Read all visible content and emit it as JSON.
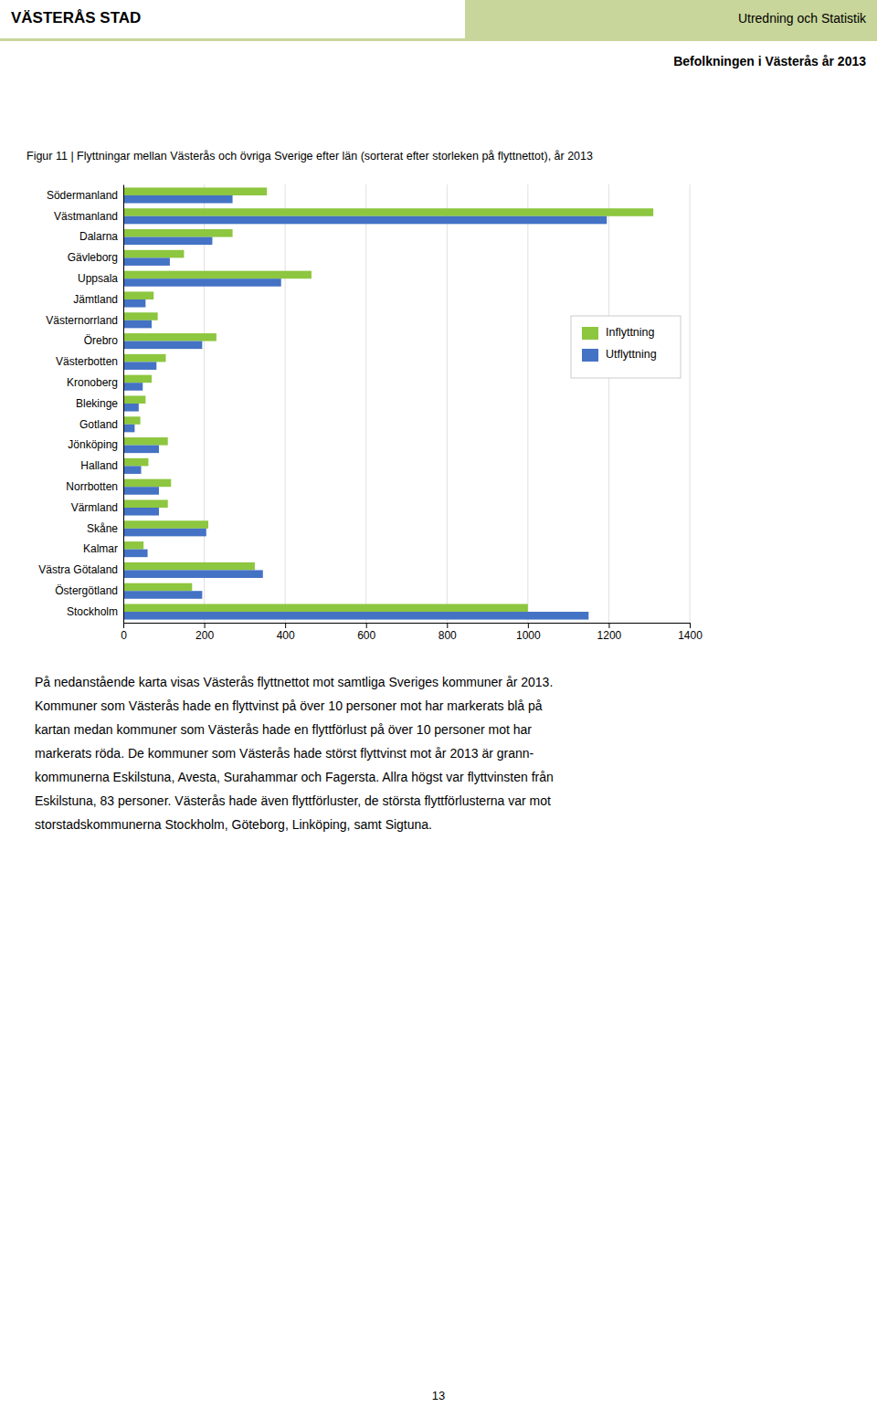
{
  "page": {
    "header_left": "VÄSTERÅS STAD",
    "header_right": "Utredning och Statistik",
    "header_color": "#C9D69B",
    "subtitle": "Befolkningen i Västerås år 2013",
    "body": [
      "På nedanstående karta visas Västerås flyttnettot mot samtliga Sveriges kommuner år 2013.",
      "Kommuner som Västerås hade en flyttvinst på över 10 personer mot har markerats blå på",
      "kartan medan kommuner som Västerås hade en flyttförlust på över 10 personer mot har",
      "markerats röda. De kommuner som Västerås hade störst flyttvinst mot år 2013 är grann-",
      "kommunerna Eskilstuna, Avesta, Surahammar och Fagersta. Allra högst var flyttvinsten från",
      "Eskilstuna, 83 personer. Västerås hade även flyttförluster, de största flyttförlusterna var mot",
      "storstadskommunerna Stockholm, Göteborg, Linköping, samt Sigtuna."
    ],
    "page_number": "13"
  },
  "chart_data": {
    "type": "bar",
    "orientation": "horizontal",
    "title": "Figur 11 | Flyttningar mellan Västerås och övriga Sverige efter län (sorterat efter storleken på flyttnettot), år 2013",
    "categories": [
      "Södermanland",
      "Västmanland",
      "Dalarna",
      "Gävleborg",
      "Uppsala",
      "Jämtland",
      "Västernorrland",
      "Örebro",
      "Västerbotten",
      "Kronoberg",
      "Blekinge",
      "Gotland",
      "Jönköping",
      "Halland",
      "Norrbotten",
      "Värmland",
      "Skåne",
      "Kalmar",
      "Västra Götaland",
      "Östergötland",
      "Stockholm"
    ],
    "series": [
      {
        "name": "Inflyttning",
        "color": "#8DC63F",
        "values": [
          355,
          1310,
          270,
          150,
          465,
          75,
          85,
          230,
          105,
          70,
          55,
          42,
          110,
          62,
          118,
          110,
          210,
          50,
          325,
          170,
          1000
        ]
      },
      {
        "name": "Utflyttning",
        "color": "#4472C4",
        "values": [
          270,
          1195,
          220,
          115,
          390,
          55,
          70,
          195,
          82,
          48,
          38,
          28,
          88,
          44,
          88,
          88,
          205,
          60,
          345,
          195,
          1150
        ]
      }
    ],
    "xlim": [
      0,
      1400
    ],
    "xticks": [
      0,
      200,
      400,
      600,
      800,
      1000,
      1200,
      1400
    ],
    "grid": true,
    "legend": "upper right"
  }
}
